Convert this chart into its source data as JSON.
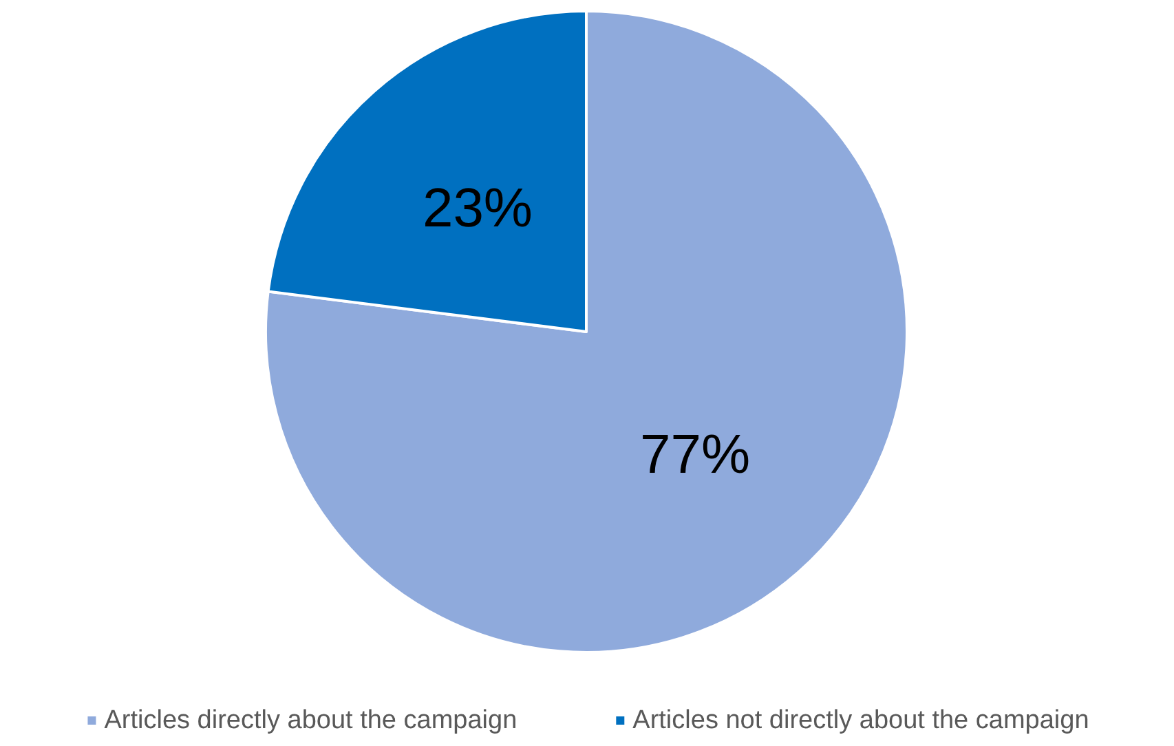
{
  "chart_data": {
    "type": "pie",
    "categories": [
      "Articles directly about the campaign",
      "Articles not directly about the campaign"
    ],
    "values": [
      77,
      23
    ],
    "colors": [
      "#8faadc",
      "#0070c0"
    ],
    "value_labels": [
      "77%",
      "23%"
    ],
    "legend": "bottom"
  }
}
